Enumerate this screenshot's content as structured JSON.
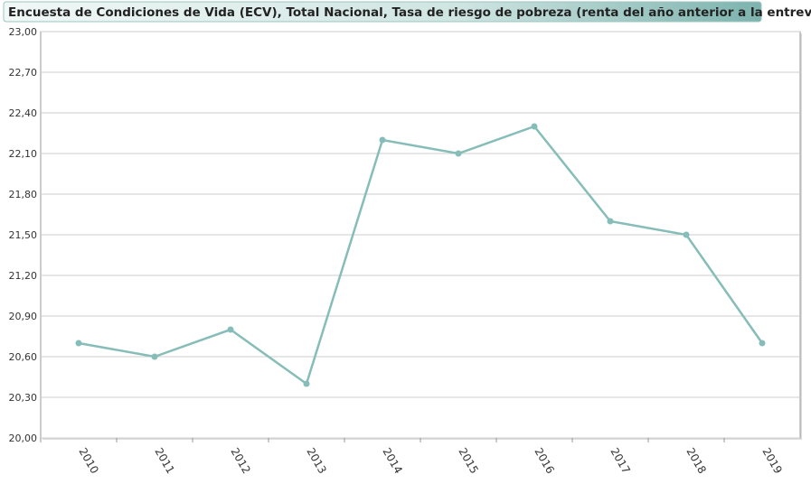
{
  "chart_data": {
    "type": "line",
    "title": "Encuesta de Condiciones de Vida (ECV), Total Nacional, Tasa de riesgo de pobreza (renta del año anterior a la entrevista)",
    "categories": [
      "2010",
      "2011",
      "2012",
      "2013",
      "2014",
      "2015",
      "2016",
      "2017",
      "2018",
      "2019"
    ],
    "series": [
      {
        "name": "Tasa de riesgo de pobreza",
        "color": "#86bdb8",
        "values": [
          20.7,
          20.6,
          20.8,
          20.4,
          22.2,
          22.1,
          22.3,
          21.6,
          21.5,
          20.7
        ]
      }
    ],
    "ylim": [
      20,
      23
    ],
    "yticks": [
      {
        "value": 20,
        "label": "20,00"
      },
      {
        "value": 20.3,
        "label": "20,30"
      },
      {
        "value": 20.6,
        "label": "20,60"
      },
      {
        "value": 20.9,
        "label": "20,90"
      },
      {
        "value": 21.2,
        "label": "21,20"
      },
      {
        "value": 21.5,
        "label": "21,50"
      },
      {
        "value": 21.8,
        "label": "21,80"
      },
      {
        "value": 22.1,
        "label": "22,10"
      },
      {
        "value": 22.4,
        "label": "22,40"
      },
      {
        "value": 22.7,
        "label": "22,70"
      },
      {
        "value": 23,
        "label": "23,00"
      }
    ],
    "grid": true
  }
}
